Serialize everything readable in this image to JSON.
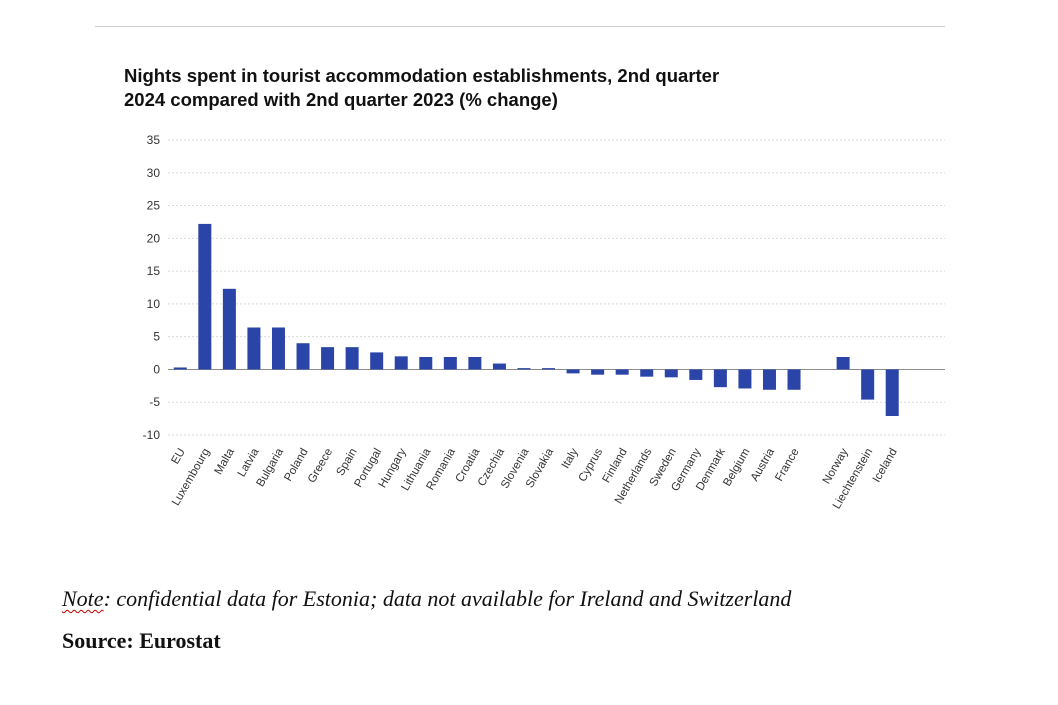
{
  "chart_data": {
    "type": "bar",
    "title_line1": "Nights spent in tourist accommodation establishments, 2nd quarter",
    "title_line2": "2024 compared with 2nd quarter 2023 (% change)",
    "categories": [
      "EU",
      "Luxembourg",
      "Malta",
      "Latvia",
      "Bulgaria",
      "Poland",
      "Greece",
      "Spain",
      "Portugal",
      "Hungary",
      "Lithuania",
      "Romania",
      "Croatia",
      "Czechia",
      "Slovenia",
      "Slovakia",
      "Italy",
      "Cyprus",
      "Finland",
      "Netherlands",
      "Sweden",
      "Germany",
      "Denmark",
      "Belgium",
      "Austria",
      "France",
      "Norway",
      "Liechtenstein",
      "Iceland"
    ],
    "values": [
      0.3,
      22.2,
      12.3,
      6.4,
      6.4,
      4.0,
      3.4,
      3.4,
      2.6,
      2.0,
      1.9,
      1.9,
      1.9,
      0.9,
      0.2,
      0.2,
      -0.6,
      -0.8,
      -0.8,
      -1.1,
      -1.2,
      -1.6,
      -2.7,
      -2.9,
      -3.1,
      -3.1,
      1.9,
      -4.6,
      -7.1
    ],
    "ylim": [
      -10,
      35
    ],
    "yticks": [
      -10,
      -5,
      0,
      5,
      10,
      15,
      20,
      25,
      30,
      35
    ],
    "grid": true,
    "bar_color": "#2a44a8"
  },
  "note": {
    "lead": "Note",
    "text": ": confidential data for Estonia; data not available for Ireland and Switzerland"
  },
  "source": "Source: Eurostat"
}
